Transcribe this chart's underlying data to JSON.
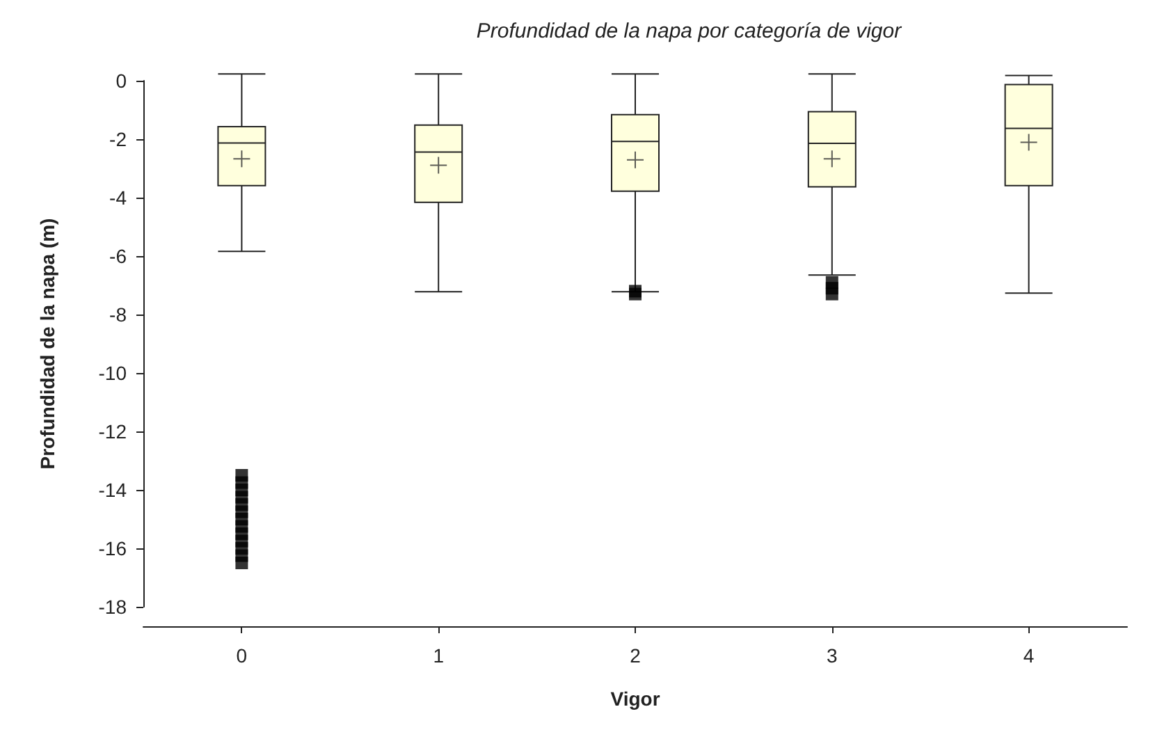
{
  "chart_data": {
    "type": "box",
    "title": "Profundidad de la napa por categoría de vigor",
    "xlabel": "Vigor",
    "ylabel": "Profundidad de la napa (m)",
    "categories": [
      "0",
      "1",
      "2",
      "3",
      "4"
    ],
    "series": [
      {
        "color": "#ffffdd",
        "boxes": [
          {
            "low": -5.84,
            "q1": -3.59,
            "median": -2.13,
            "q3": -1.57,
            "high": 0.23,
            "mean": -2.67,
            "outliers": [
              -13.5,
              -13.75,
              -14,
              -14.25,
              -14.5,
              -14.75,
              -15,
              -15.25,
              -15.5,
              -15.75,
              -16,
              -16.25,
              -16.5
            ]
          },
          {
            "low": -7.22,
            "q1": -4.16,
            "median": -2.44,
            "q3": -1.52,
            "high": 0.23,
            "mean": -2.89
          },
          {
            "low": -7.22,
            "q1": -3.78,
            "median": -2.08,
            "q3": -1.16,
            "high": 0.23,
            "mean": -2.71,
            "outliers": [
              -7.2,
              -7.3
            ]
          },
          {
            "low": -6.65,
            "q1": -3.63,
            "median": -2.14,
            "q3": -1.06,
            "high": 0.23,
            "mean": -2.67,
            "outliers": [
              -6.9,
              -7.1,
              -7.3
            ]
          },
          {
            "low": -7.27,
            "q1": -3.59,
            "median": -1.63,
            "q3": -0.13,
            "high": 0.18,
            "mean": -2.11
          }
        ]
      }
    ],
    "ylim": [
      -18,
      0
    ],
    "yticks": [
      -18,
      -16,
      -14,
      -12,
      -10,
      -8,
      -6,
      -4,
      -2,
      0
    ],
    "marker": "square"
  }
}
